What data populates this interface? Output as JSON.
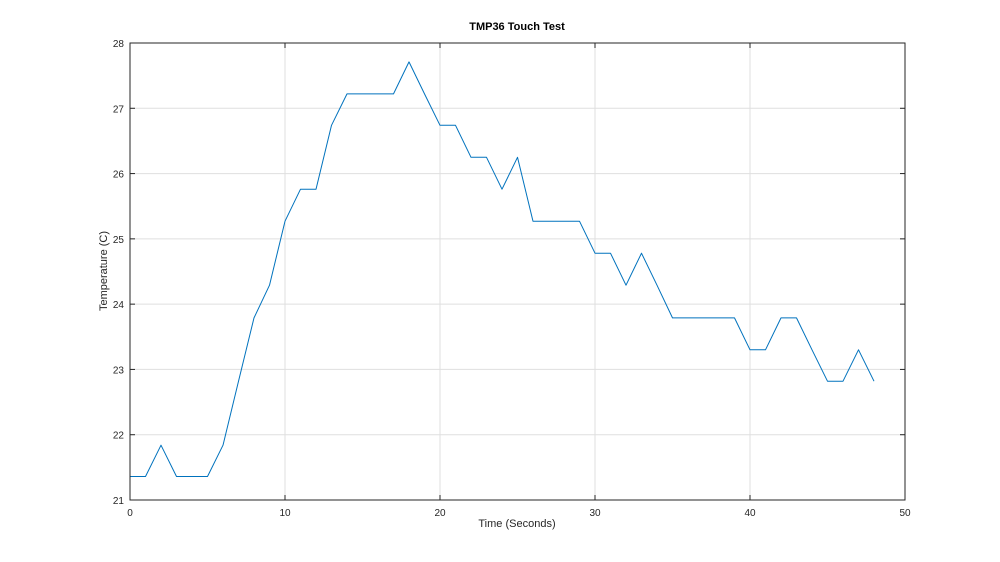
{
  "chart_data": {
    "type": "line",
    "title": "TMP36 Touch Test",
    "xlabel": "Time (Seconds)",
    "ylabel": "Temperature (C)",
    "xlim": [
      0,
      50
    ],
    "ylim": [
      21,
      28
    ],
    "xticks": [
      0,
      10,
      20,
      30,
      40,
      50
    ],
    "yticks": [
      21,
      22,
      23,
      24,
      25,
      26,
      27,
      28
    ],
    "grid": true,
    "series": [
      {
        "color": "#0072bd",
        "x": [
          0,
          1,
          2,
          3,
          4,
          5,
          6,
          7,
          8,
          9,
          10,
          11,
          12,
          13,
          14,
          15,
          16,
          17,
          18,
          19,
          20,
          21,
          22,
          23,
          24,
          25,
          26,
          27,
          28,
          29,
          30,
          31,
          32,
          33,
          34,
          35,
          36,
          37,
          38,
          39,
          40,
          41,
          42,
          43,
          44,
          45,
          46,
          47,
          48
        ],
        "y": [
          21.36,
          21.36,
          21.84,
          21.36,
          21.36,
          21.36,
          21.84,
          22.82,
          23.79,
          24.29,
          25.27,
          25.76,
          25.76,
          26.74,
          27.22,
          27.22,
          27.22,
          27.22,
          27.71,
          27.22,
          26.74,
          26.74,
          26.25,
          26.25,
          25.76,
          26.25,
          25.27,
          25.27,
          25.27,
          25.27,
          24.78,
          24.78,
          24.29,
          24.78,
          24.29,
          23.79,
          23.79,
          23.79,
          23.79,
          23.79,
          23.3,
          23.3,
          23.79,
          23.79,
          23.3,
          22.82,
          22.82,
          23.3,
          22.82
        ]
      }
    ]
  }
}
